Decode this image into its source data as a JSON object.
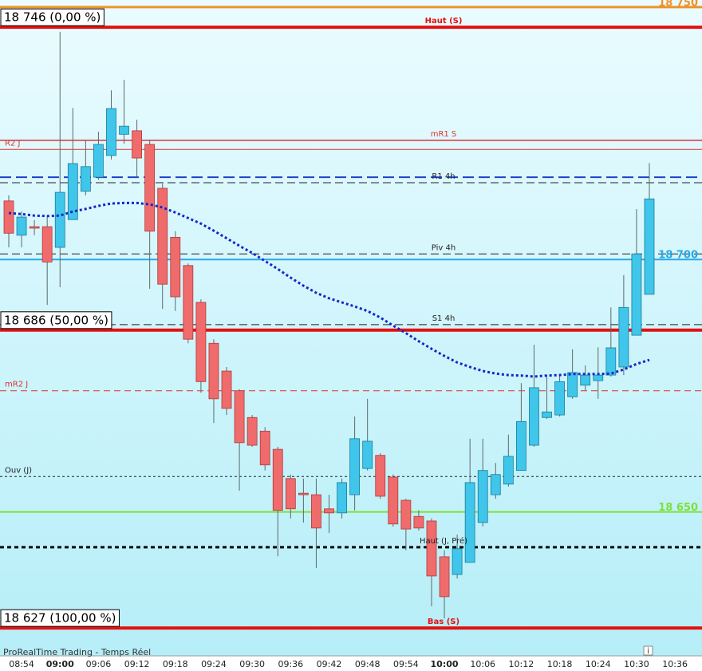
{
  "chart_data": {
    "type": "candlestick",
    "footer": "ProRealTime Trading - Temps Réel",
    "categories": [
      null,
      "08:54",
      null,
      null,
      "09:00",
      null,
      null,
      "09:06",
      null,
      null,
      "09:12",
      null,
      null,
      "09:18",
      null,
      null,
      "09:24",
      null,
      null,
      "09:30",
      null,
      null,
      "09:36",
      null,
      null,
      "09:42",
      null,
      null,
      "09:48",
      null,
      null,
      "09:54",
      null,
      null,
      "10:00",
      null,
      null,
      "10:06",
      null,
      null,
      "10:12",
      null,
      null,
      "10:18",
      null,
      null,
      "10:24",
      null,
      null,
      "10:30",
      null,
      null,
      "10:36"
    ],
    "ylim": [
      18621.8,
      18751.4
    ],
    "up_color": "#3fc6ea",
    "down_color": "#f06b6b",
    "ohlc": {
      "open": [
        18711.6,
        18704.8,
        18706.5,
        18706.5,
        18702.4,
        18707.9,
        18713.5,
        18716.3,
        18720.6,
        18724.8,
        18725.5,
        18722.8,
        18714.1,
        18704.4,
        18698.8,
        18691.5,
        18683.4,
        18677.9,
        18674.0,
        18668.7,
        18666.0,
        18662.4,
        18656.6,
        18653.7,
        18653.4,
        18650.6,
        18649.8,
        18653.4,
        18658.6,
        18661.2,
        18656.9,
        18652.3,
        18649.1,
        18648.2,
        18641.1,
        18637.6,
        18640.0,
        18647.9,
        18653.4,
        18655.5,
        18658.2,
        18663.2,
        18668.7,
        18669.2,
        18672.8,
        18675.1,
        18676.0,
        18677.1,
        18678.7,
        18685.0,
        18693.1,
        null,
        null
      ],
      "high": [
        18712.7,
        18709.5,
        18707.8,
        18708.7,
        18745.1,
        18730.0,
        18723.7,
        18725.3,
        18733.5,
        18735.6,
        18727.7,
        18723.7,
        18715.0,
        18705.6,
        18699.2,
        18692.1,
        18684.2,
        18678.7,
        18674.3,
        18669.2,
        18666.8,
        18662.9,
        18657.4,
        18656.6,
        18656.6,
        18653.4,
        18656.6,
        18668.9,
        18672.4,
        18661.6,
        18657.4,
        18652.6,
        18650.3,
        18648.7,
        18642.4,
        18645.5,
        18664.5,
        18664.5,
        18659.7,
        18665.3,
        18675.5,
        18683.1,
        18677.1,
        18677.1,
        18682.2,
        18679.0,
        18682.6,
        18690.5,
        18696.9,
        18710.0,
        18719.1,
        null,
        null
      ],
      "low": [
        18702.4,
        18702.4,
        18704.8,
        18691.0,
        18694.5,
        18707.9,
        18712.7,
        18715.8,
        18719.8,
        18722.9,
        18716.3,
        18694.2,
        18690.2,
        18689.8,
        18683.4,
        18673.6,
        18667.6,
        18669.2,
        18654.2,
        18662.9,
        18658.2,
        18641.2,
        18648.7,
        18647.9,
        18638.9,
        18645.8,
        18648.7,
        18650.3,
        18658.2,
        18652.6,
        18647.1,
        18642.4,
        18646.3,
        18631.3,
        18628.9,
        18636.8,
        18640.0,
        18647.1,
        18652.6,
        18655.0,
        18658.2,
        18662.9,
        18668.4,
        18668.9,
        18672.4,
        18674.0,
        18672.4,
        18676.8,
        18677.1,
        18685.0,
        18693.1,
        null,
        null
      ],
      "close": [
        18705.2,
        18708.4,
        18706.2,
        18699.5,
        18713.3,
        18719.0,
        18718.4,
        18722.8,
        18729.9,
        18726.4,
        18720.1,
        18705.6,
        18695.1,
        18692.6,
        18684.2,
        18675.8,
        18672.4,
        18670.5,
        18663.7,
        18663.2,
        18659.3,
        18650.3,
        18650.6,
        18653.4,
        18646.8,
        18649.8,
        18655.8,
        18664.5,
        18664.0,
        18653.1,
        18647.6,
        18646.6,
        18646.8,
        18637.3,
        18633.2,
        18642.7,
        18655.8,
        18658.2,
        18657.4,
        18661.0,
        18667.9,
        18674.6,
        18669.8,
        18675.8,
        18677.6,
        18677.1,
        18677.1,
        18682.5,
        18690.5,
        18701.1,
        18712.0,
        null,
        null
      ]
    },
    "moving_average": {
      "color": "#1428c8",
      "values": [
        18709.2,
        18709.0,
        18708.7,
        18708.6,
        18708.7,
        18709.5,
        18710.0,
        18710.6,
        18711.1,
        18711.2,
        18711.2,
        18710.9,
        18710.3,
        18709.3,
        18708.2,
        18707.1,
        18705.7,
        18704.2,
        18702.7,
        18701.3,
        18699.7,
        18698.1,
        18696.4,
        18694.8,
        18693.4,
        18692.3,
        18691.5,
        18690.7,
        18689.8,
        18688.5,
        18686.9,
        18685.4,
        18683.8,
        18682.3,
        18680.9,
        18679.6,
        18678.7,
        18677.9,
        18677.4,
        18677.1,
        18677.0,
        18676.8,
        18677.0,
        18677.1,
        18677.3,
        18677.3,
        18677.3,
        18677.4,
        18678.2,
        18679.3,
        18680.1,
        null,
        null
      ]
    },
    "levels": [
      {
        "value": 18750,
        "color": "#f0922a",
        "width": 3,
        "price_label": "18 750"
      },
      {
        "value": 18746,
        "color": "#e41010",
        "width": 4,
        "label": "Haut (S)",
        "box_label": "18 746 (0,00 %)"
      },
      {
        "value": 18723.6,
        "color": "#e03030",
        "width": 1.5,
        "label": "mR1 S"
      },
      {
        "value": 18721.8,
        "color": "#e03030",
        "width": 1,
        "label": "R2 J",
        "label_side": "left"
      },
      {
        "value": 18716.3,
        "color": "#1f3fd0",
        "width": 2,
        "dash": "14 6"
      },
      {
        "value": 18715.2,
        "color": "#222222",
        "width": 1,
        "dash": "10 5",
        "label": "R1 4h"
      },
      {
        "value": 18701.1,
        "color": "#222222",
        "width": 1,
        "dash": "10 5",
        "label": "Piv 4h"
      },
      {
        "value": 18700,
        "color": "#29a9e6",
        "width": 2,
        "price_label": "18 700"
      },
      {
        "value": 18687.1,
        "color": "#222222",
        "width": 1,
        "dash": "10 5",
        "label": "S1 4h"
      },
      {
        "value": 18686,
        "color": "#e41010",
        "width": 4,
        "box_label": "18 686 (50,00 %)"
      },
      {
        "value": 18674.0,
        "color": "#e03030",
        "width": 1,
        "dash": "8 5",
        "label": "mR2 J",
        "label_side": "left"
      },
      {
        "value": 18657.0,
        "color": "#222222",
        "width": 1,
        "dash": "3 3",
        "label": "Ouv (J)",
        "label_side": "left"
      },
      {
        "value": 18650,
        "color": "#7ee03a",
        "width": 2,
        "price_label": "18 650"
      },
      {
        "value": 18643,
        "color": "#000000",
        "width": 3,
        "dash": "5 4",
        "label": "Haut (J, Pré)"
      },
      {
        "value": 18627,
        "color": "#e41010",
        "width": 4,
        "label": "Bas (S)",
        "box_label": "18 627 (100,00 %)"
      }
    ]
  }
}
